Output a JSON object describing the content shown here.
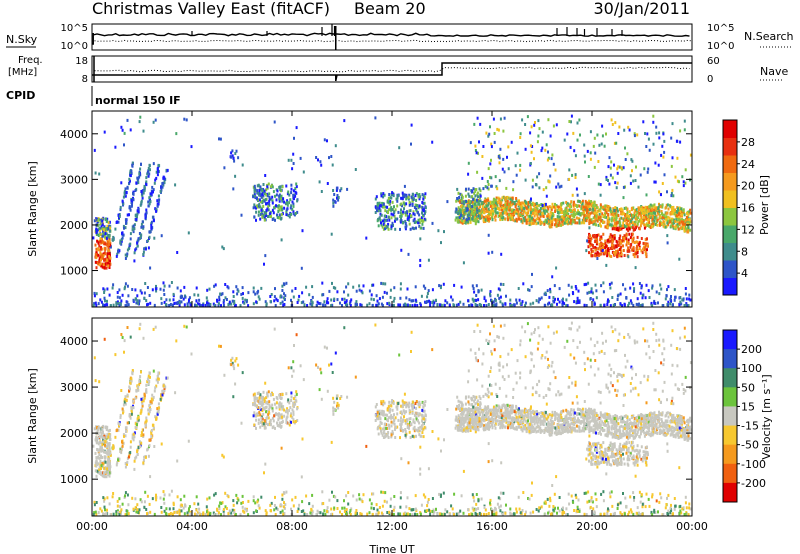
{
  "header": {
    "title": "Christmas Valley East (fitACF)",
    "beam": "Beam 20",
    "date": "30/Jan/2011"
  },
  "noise_panel": {
    "left_label": "N.Sky",
    "right_label": "N.Search",
    "left_ticks": [
      "10^5",
      "10^0"
    ],
    "right_ticks": [
      "10^5",
      "10^0"
    ]
  },
  "freq_panel": {
    "left_label_1": "Freq.",
    "left_label_2": "[MHz]",
    "right_label": "Nave",
    "left_ticks": [
      "18",
      "8"
    ],
    "right_ticks": [
      "60",
      "0"
    ]
  },
  "cpid": {
    "label": "CPID",
    "value": "normal 150 IF"
  },
  "colors": {
    "power_scale": [
      "#1a1aff",
      "#2e55c8",
      "#3f8c8c",
      "#49a86a",
      "#8cc63f",
      "#f0c020",
      "#f59a1e",
      "#f06a10",
      "#e83010",
      "#e00000"
    ],
    "velocity_scale": [
      "#1a1aff",
      "#2e55c8",
      "#3f8c6a",
      "#6cc43c",
      "#c8c8c0",
      "#f7c830",
      "#f59a1e",
      "#f06010",
      "#e00000"
    ]
  },
  "chart_data": [
    {
      "type": "heatmap",
      "name": "power",
      "ylabel": "Slant Range [km]",
      "y_ticks": [
        1000,
        2000,
        3000,
        4000
      ],
      "ylim": [
        200,
        4500
      ],
      "x_ticks": [
        "00:00",
        "04:00",
        "08:00",
        "12:00",
        "16:00",
        "20:00",
        "00:00"
      ],
      "xlim_hours": [
        0,
        24
      ],
      "colorbar_label": "Power [dB]",
      "colorbar_ticks": [
        4,
        8,
        12,
        16,
        20,
        24,
        28
      ],
      "colorbar_range": [
        0,
        32
      ]
    },
    {
      "type": "heatmap",
      "name": "velocity",
      "ylabel": "Slant Range [km]",
      "y_ticks": [
        1000,
        2000,
        3000,
        4000
      ],
      "ylim": [
        200,
        4500
      ],
      "x_ticks": [
        "00:00",
        "04:00",
        "08:00",
        "12:00",
        "16:00",
        "20:00",
        "00:00"
      ],
      "xlim_hours": [
        0,
        24
      ],
      "xlabel": "Time UT",
      "colorbar_label": "Velocity [m s⁻¹]",
      "colorbar_ticks": [
        200,
        100,
        50,
        15,
        -15,
        -50,
        -100,
        -200
      ]
    }
  ]
}
